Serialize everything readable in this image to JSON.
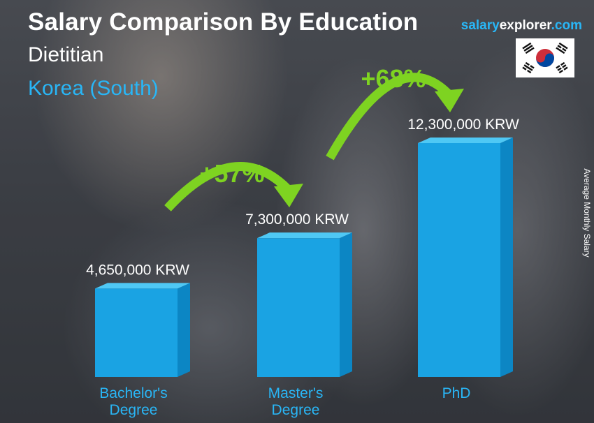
{
  "header": {
    "title": "Salary Comparison By Education",
    "subtitle": "Dietitian",
    "country": "Korea (South)"
  },
  "brand": {
    "part1": "salary",
    "part2": "explorer",
    "part3": ".com"
  },
  "side_label": "Average Monthly Salary",
  "flag_icon": "south-korea-flag-icon",
  "colors": {
    "bar_front": "#1aa3e3",
    "bar_side": "#0c86c4",
    "bar_top": "#4fc8f4",
    "accent_blue": "#29b6f6",
    "arrow_green": "#7ed321",
    "white": "#ffffff"
  },
  "chart_data": {
    "type": "bar",
    "title": "Salary Comparison By Education",
    "categories": [
      [
        "Bachelor's",
        "Degree"
      ],
      [
        "Master's",
        "Degree"
      ],
      [
        "PhD"
      ]
    ],
    "values": [
      4650000,
      7300000,
      12300000
    ],
    "value_labels": [
      "4,650,000 KRW",
      "7,300,000 KRW",
      "12,300,000 KRW"
    ],
    "unit": "KRW",
    "ylabel": "Average Monthly Salary",
    "ylim": [
      0,
      12300000
    ],
    "grid": false,
    "legend": "none",
    "increases": [
      {
        "from": 0,
        "to": 1,
        "label": "+57%"
      },
      {
        "from": 1,
        "to": 2,
        "label": "+68%"
      }
    ]
  }
}
